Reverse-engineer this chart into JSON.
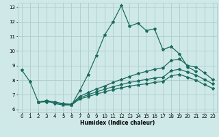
{
  "xlabel": "Humidex (Indice chaleur)",
  "ylabel": "",
  "xlim": [
    -0.5,
    23.5
  ],
  "ylim": [
    5.8,
    13.3
  ],
  "yticks": [
    6,
    7,
    8,
    9,
    10,
    11,
    12,
    13
  ],
  "xticks": [
    0,
    1,
    2,
    3,
    4,
    5,
    6,
    7,
    8,
    9,
    10,
    11,
    12,
    13,
    14,
    15,
    16,
    17,
    18,
    19,
    20,
    21,
    22,
    23
  ],
  "bg_color": "#cfe8e8",
  "grid_color": "#a8c8c8",
  "line_color": "#1a6b5e",
  "line_width": 0.9,
  "marker": "*",
  "marker_size": 3,
  "series": [
    {
      "x": [
        0,
        1,
        2,
        3,
        4,
        5,
        6,
        7,
        8,
        9,
        10,
        11,
        12,
        13,
        14,
        15,
        16,
        17,
        18,
        19,
        20,
        21
      ],
      "y": [
        8.7,
        7.9,
        6.5,
        6.6,
        6.4,
        6.3,
        6.3,
        7.3,
        8.4,
        9.7,
        11.1,
        12.0,
        13.1,
        11.7,
        11.9,
        11.4,
        11.5,
        10.1,
        10.3,
        9.8,
        8.9,
        8.6
      ]
    },
    {
      "x": [
        2,
        3,
        4,
        5,
        6,
        7,
        8,
        9,
        10,
        11,
        12,
        13,
        14,
        15,
        16,
        17,
        18,
        19,
        20,
        21,
        22,
        23
      ],
      "y": [
        6.5,
        6.6,
        6.5,
        6.4,
        6.35,
        6.9,
        7.15,
        7.4,
        7.6,
        7.85,
        8.05,
        8.25,
        8.45,
        8.6,
        8.75,
        8.85,
        9.35,
        9.45,
        9.0,
        8.9,
        8.5,
        8.05
      ]
    },
    {
      "x": [
        2,
        3,
        4,
        5,
        6,
        7,
        8,
        9,
        10,
        11,
        12,
        13,
        14,
        15,
        16,
        17,
        18,
        19,
        20,
        21,
        22,
        23
      ],
      "y": [
        6.5,
        6.55,
        6.5,
        6.38,
        6.32,
        6.8,
        7.0,
        7.2,
        7.38,
        7.55,
        7.7,
        7.85,
        7.95,
        8.05,
        8.15,
        8.2,
        8.65,
        8.75,
        8.55,
        8.35,
        8.05,
        7.75
      ]
    },
    {
      "x": [
        2,
        3,
        4,
        5,
        6,
        7,
        8,
        9,
        10,
        11,
        12,
        13,
        14,
        15,
        16,
        17,
        18,
        19,
        20,
        21,
        22,
        23
      ],
      "y": [
        6.5,
        6.52,
        6.5,
        6.35,
        6.3,
        6.72,
        6.88,
        7.05,
        7.2,
        7.35,
        7.48,
        7.6,
        7.68,
        7.75,
        7.85,
        7.9,
        8.3,
        8.4,
        8.2,
        8.0,
        7.7,
        7.45
      ]
    }
  ]
}
